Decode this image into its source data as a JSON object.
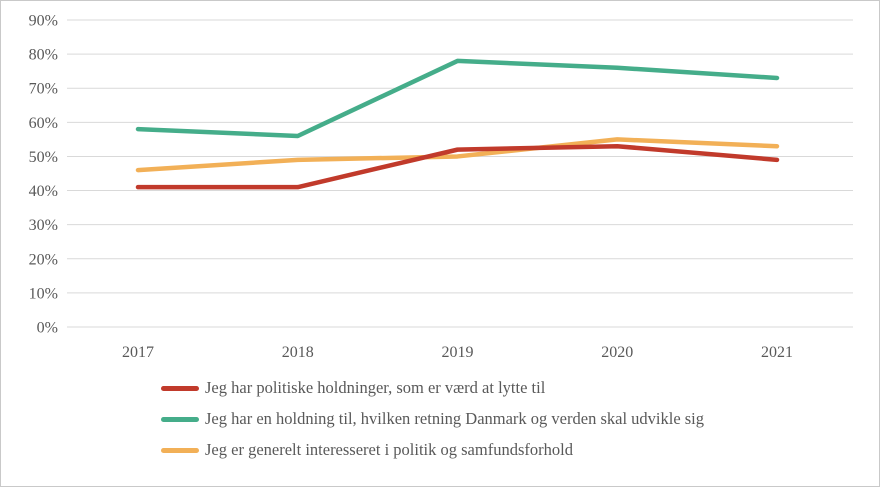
{
  "chart_data": {
    "type": "line",
    "title": "",
    "xlabel": "",
    "ylabel": "",
    "categories": [
      "2017",
      "2018",
      "2019",
      "2020",
      "2021"
    ],
    "series": [
      {
        "name": "Jeg har politiske holdninger, som er værd at lytte til",
        "color": "#c13a2b",
        "values": [
          41,
          41,
          52,
          53,
          49
        ]
      },
      {
        "name": "Jeg har en holdning til, hvilken retning Danmark og verden skal udvikle sig",
        "color": "#45ad8a",
        "values": [
          58,
          56,
          78,
          76,
          73
        ]
      },
      {
        "name": "Jeg er generelt interesseret i politik og samfundsforhold",
        "color": "#f2b057",
        "values": [
          46,
          49,
          50,
          55,
          53
        ]
      }
    ],
    "ylim": [
      0,
      90
    ],
    "ytick_step": 10,
    "ytick_labels": [
      "0%",
      "10%",
      "20%",
      "30%",
      "40%",
      "50%",
      "60%",
      "70%",
      "80%",
      "90%"
    ],
    "grid": "horizontal",
    "gridline_color": "#d9d9d9",
    "text_color": "#595959",
    "legend_position": "bottom-left",
    "legend_order": [
      0,
      1,
      2
    ],
    "draw_order": [
      1,
      2,
      0
    ]
  }
}
